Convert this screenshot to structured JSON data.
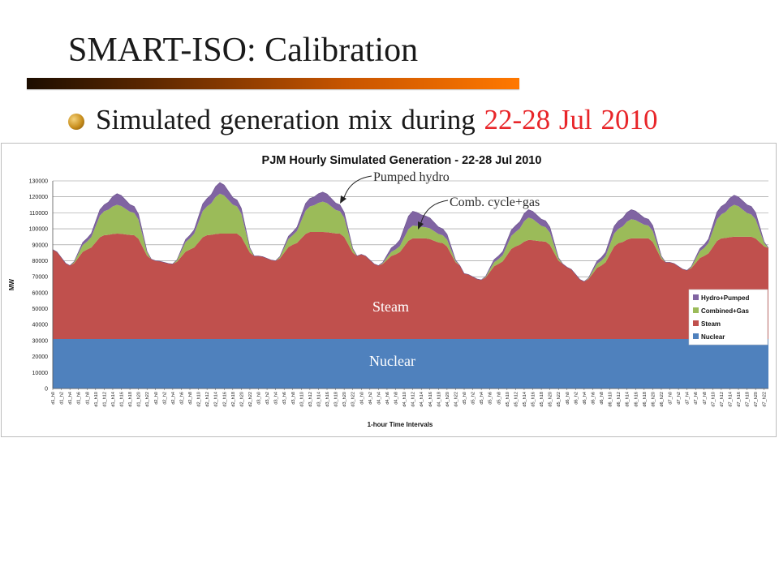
{
  "slide": {
    "title": "SMART-ISO: Calibration",
    "bullet_prefix": "Simulated generation mix during ",
    "bullet_date": "22-28 Jul 2010"
  },
  "colors": {
    "nuclear": "#4f81bd",
    "steam": "#c0504d",
    "combined_gas": "#9bbb59",
    "hydro_pumped": "#8064a2",
    "title_bar_start": "#1c0d00",
    "title_bar_end": "#ff7800",
    "date_text": "#e8262a"
  },
  "annotations": {
    "pumped_hydro": "Pumped hydro",
    "comb_cycle": "Comb. cycle+gas",
    "steam": "Steam",
    "nuclear": "Nuclear"
  },
  "chart_data": {
    "type": "area",
    "stacked": true,
    "title": "PJM Hourly Simulated Generation - 22-28 Jul 2010",
    "xlabel": "1-hour Time Intervals",
    "ylabel": "MW",
    "ylim": [
      0,
      130000
    ],
    "yticks": [
      0,
      10000,
      20000,
      30000,
      40000,
      50000,
      60000,
      70000,
      80000,
      90000,
      100000,
      110000,
      120000,
      130000
    ],
    "grid": true,
    "legend_position": "right",
    "x_label_step": 2,
    "days": [
      "d1",
      "d2",
      "d3",
      "d4",
      "d5",
      "d6",
      "d7"
    ],
    "hours_per_day": 24,
    "series": [
      {
        "name": "Nuclear",
        "mode": "constant",
        "value": 31000
      },
      {
        "name": "Steam",
        "mode": "daily",
        "hour_anchors": [
          0,
          4,
          8,
          12,
          15,
          19,
          23
        ],
        "profiles": [
          [
            56000,
            46000,
            56000,
            65000,
            66000,
            65000,
            50000
          ],
          [
            49000,
            47000,
            56000,
            65000,
            66000,
            66000,
            52000
          ],
          [
            52000,
            49000,
            59000,
            67000,
            67000,
            66000,
            52000
          ],
          [
            53000,
            46000,
            53000,
            63000,
            63000,
            60000,
            46000
          ],
          [
            41000,
            37000,
            47000,
            58000,
            62000,
            61000,
            47000
          ],
          [
            45000,
            36000,
            46000,
            60000,
            63000,
            63000,
            48000
          ],
          [
            48000,
            43000,
            52000,
            63000,
            64000,
            64000,
            57000
          ]
        ]
      },
      {
        "name": "Combined+Gas",
        "mode": "daily",
        "hour_anchors": [
          0,
          4,
          8,
          12,
          15,
          19,
          23
        ],
        "profiles": [
          [
            0,
            0,
            5000,
            15000,
            18000,
            14000,
            0
          ],
          [
            0,
            0,
            7000,
            18000,
            25000,
            17000,
            0
          ],
          [
            0,
            0,
            6000,
            16000,
            19000,
            14000,
            0
          ],
          [
            0,
            0,
            3000,
            8000,
            7000,
            5000,
            0
          ],
          [
            0,
            0,
            3000,
            9000,
            14000,
            9000,
            0
          ],
          [
            0,
            0,
            3000,
            9000,
            12000,
            8000,
            0
          ],
          [
            0,
            0,
            5000,
            15000,
            20000,
            14000,
            0
          ]
        ]
      },
      {
        "name": "Hydro+Pumped",
        "mode": "daily",
        "hour_anchors": [
          0,
          4,
          8,
          12,
          15,
          19,
          23
        ],
        "profiles": [
          [
            0,
            0,
            2000,
            4000,
            7000,
            4000,
            0
          ],
          [
            0,
            0,
            2000,
            5000,
            7000,
            4000,
            0
          ],
          [
            0,
            0,
            2000,
            5000,
            6000,
            4000,
            0
          ],
          [
            0,
            0,
            3000,
            9000,
            7000,
            4000,
            0
          ],
          [
            0,
            0,
            2000,
            4000,
            5000,
            4000,
            0
          ],
          [
            0,
            0,
            2000,
            5000,
            6000,
            4000,
            0
          ],
          [
            0,
            0,
            2000,
            5000,
            6000,
            5000,
            0
          ]
        ]
      }
    ]
  }
}
